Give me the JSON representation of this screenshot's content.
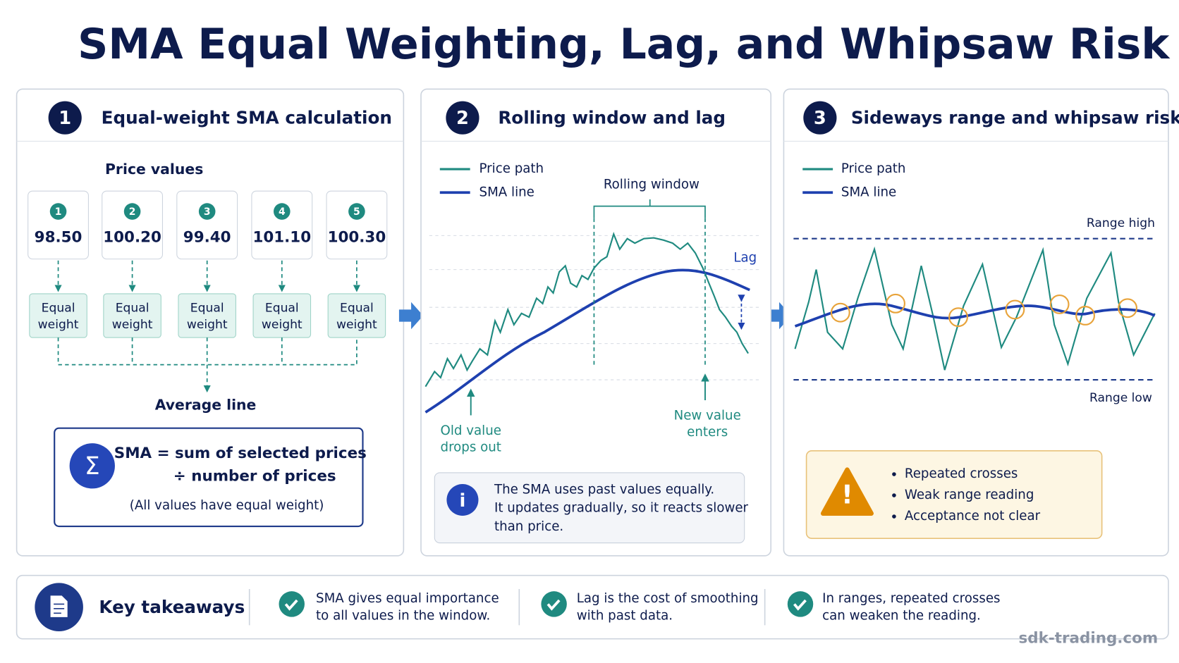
{
  "title": "SMA Equal Weighting, Lag, and Whipsaw Risk",
  "panels": [
    {
      "number": "1",
      "title": "Equal-weight SMA calculation",
      "subtitle": "Price values",
      "prices": [
        {
          "index": "1",
          "value": "98.50",
          "weight": [
            "Equal",
            "weight"
          ]
        },
        {
          "index": "2",
          "value": "100.20",
          "weight": [
            "Equal",
            "weight"
          ]
        },
        {
          "index": "3",
          "value": "99.40",
          "weight": [
            "Equal",
            "weight"
          ]
        },
        {
          "index": "4",
          "value": "101.10",
          "weight": [
            "Equal",
            "weight"
          ]
        },
        {
          "index": "5",
          "value": "100.30",
          "weight": [
            "Equal",
            "weight"
          ]
        }
      ],
      "average_label": "Average line",
      "formula_symbol": "Σ",
      "formula": [
        "SMA = sum of selected prices",
        "÷ number of prices"
      ],
      "formula_note": "(All values have equal weight)"
    },
    {
      "number": "2",
      "title": "Rolling window and lag",
      "legend": [
        "Price path",
        "SMA line"
      ],
      "rolling_window": "Rolling window",
      "lag": "Lag",
      "old_value": [
        "Old value",
        "drops out"
      ],
      "new_value": [
        "New value",
        "enters"
      ],
      "info_icon": "i",
      "info": [
        "The SMA uses past values equally.",
        "It updates gradually, so it reacts slower",
        "than price."
      ]
    },
    {
      "number": "3",
      "title": "Sideways range and whipsaw risk",
      "legend": [
        "Price path",
        "SMA line"
      ],
      "range_high": "Range high",
      "range_low": "Range low",
      "warning_icon": "!",
      "warnings": [
        "Repeated crosses",
        "Weak range reading",
        "Acceptance not clear"
      ]
    }
  ],
  "takeaways": {
    "title": "Key takeaways",
    "items": [
      [
        "SMA gives equal importance",
        "to all values in the window."
      ],
      [
        "Lag is the cost of smoothing",
        "with past data."
      ],
      [
        "In ranges, repeated crosses",
        "can weaken the reading."
      ]
    ]
  },
  "footer": "sdk-trading.com"
}
